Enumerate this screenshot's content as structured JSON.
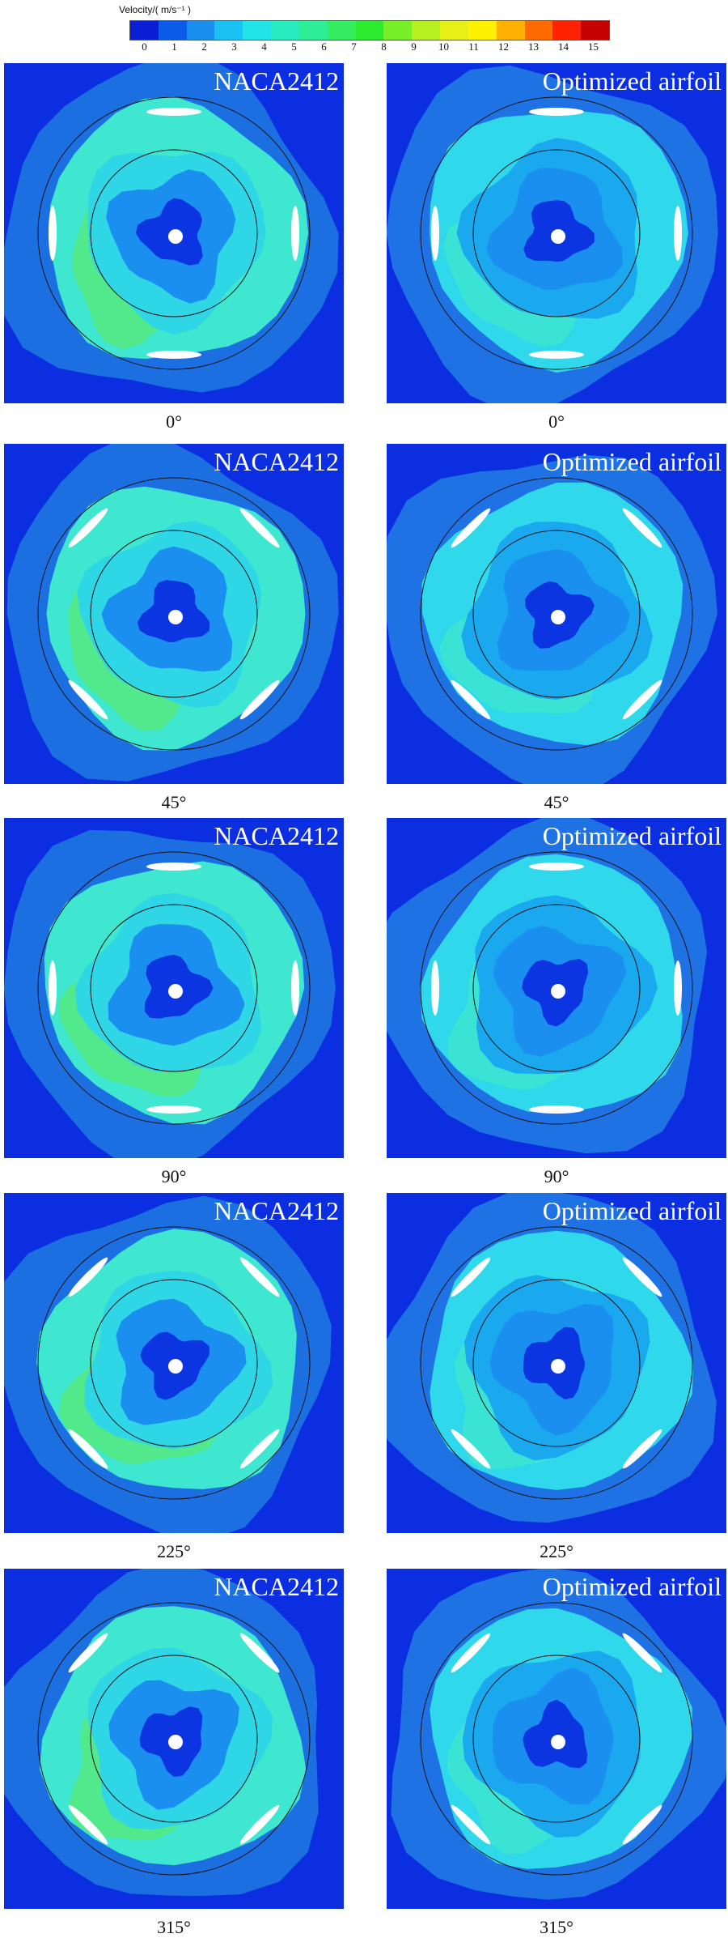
{
  "colorbar": {
    "title": "Velocity/( m/s⁻¹ )",
    "ticks": [
      "0",
      "1",
      "2",
      "3",
      "4",
      "5",
      "6",
      "7",
      "8",
      "9",
      "10",
      "11",
      "12",
      "13",
      "14",
      "15"
    ],
    "colors": [
      "#0a1ed6",
      "#0b5be8",
      "#1a8ff0",
      "#19c2f2",
      "#22e4e8",
      "#27ecc2",
      "#2eee97",
      "#36ec60",
      "#2dec2f",
      "#77ee28",
      "#b7f020",
      "#e6f018",
      "#fff200",
      "#ffb000",
      "#ff6a00",
      "#ff2200",
      "#c40000"
    ]
  },
  "figure": {
    "left_title": "NACA2412",
    "right_title": "Optimized airfoil",
    "rows": [
      {
        "angle": "0°",
        "left_angle": "0°",
        "right_angle": "0°"
      },
      {
        "angle": "45°",
        "left_angle": "45°",
        "right_angle": "45°"
      },
      {
        "angle": "90°",
        "left_angle": "90°",
        "right_angle": "90°"
      },
      {
        "angle": "225°",
        "left_angle": "225°",
        "right_angle": "225°"
      },
      {
        "angle": "315°",
        "left_angle": "315°",
        "right_angle": "315°"
      }
    ],
    "naca_colors": {
      "outer": "#1c6fe0",
      "ring": "#3fe6d0",
      "peak": "#58ea7a",
      "mid": "#2ed6e6",
      "inner": "#1a8ff0",
      "core": "#0b35e0"
    },
    "opt_colors": {
      "outer": "#1f72e4",
      "ring": "#2fd8ea",
      "peak": "#3fe6d0",
      "mid": "#1aa8ee",
      "inner": "#1a8ff0",
      "core": "#0b35e0"
    }
  }
}
